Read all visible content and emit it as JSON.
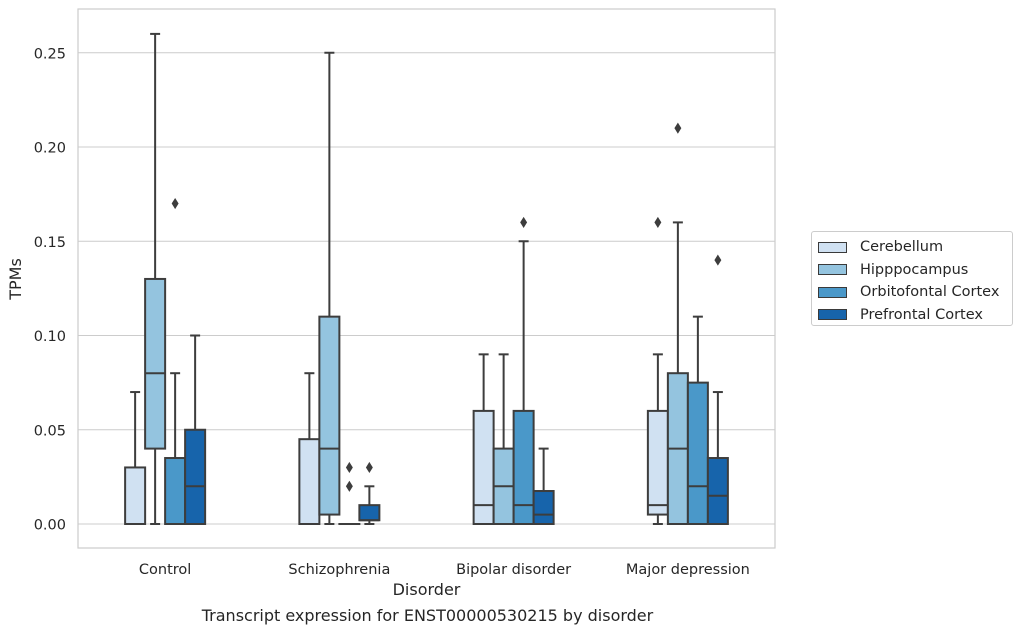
{
  "chart_data": {
    "type": "box",
    "title": "",
    "caption": "Transcript expression for ENST00000530215 by disorder",
    "xlabel": "Disorder",
    "ylabel": "TPMs",
    "ylim": [
      -0.0125,
      0.275
    ],
    "yticks": [
      0.0,
      0.05,
      0.1,
      0.15,
      0.2,
      0.25
    ],
    "ytick_labels": [
      "0.00",
      "0.05",
      "0.10",
      "0.15",
      "0.20",
      "0.25"
    ],
    "grid": "horizontal",
    "legend_position": "right",
    "categories": [
      "Control",
      "Schizophrenia",
      "Bipolar disorder",
      "Major depression"
    ],
    "series": [
      {
        "name": "Cerebellum",
        "color": "#d0e1f2",
        "boxes": [
          {
            "whislo": 0.0,
            "q1": 0.0,
            "med": 0.0,
            "q3": 0.03,
            "whishi": 0.07,
            "fliers": []
          },
          {
            "whislo": 0.0,
            "q1": 0.0,
            "med": 0.0,
            "q3": 0.045,
            "whishi": 0.08,
            "fliers": []
          },
          {
            "whislo": 0.0,
            "q1": 0.0,
            "med": 0.01,
            "q3": 0.06,
            "whishi": 0.09,
            "fliers": []
          },
          {
            "whislo": 0.0,
            "q1": 0.005,
            "med": 0.01,
            "q3": 0.06,
            "whishi": 0.09,
            "fliers": [
              0.16
            ]
          }
        ]
      },
      {
        "name": "Hipppocampus",
        "color": "#94c4df",
        "boxes": [
          {
            "whislo": 0.0,
            "q1": 0.04,
            "med": 0.08,
            "q3": 0.13,
            "whishi": 0.26,
            "fliers": []
          },
          {
            "whislo": 0.0,
            "q1": 0.005,
            "med": 0.04,
            "q3": 0.11,
            "whishi": 0.25,
            "fliers": []
          },
          {
            "whislo": 0.0,
            "q1": 0.0,
            "med": 0.02,
            "q3": 0.04,
            "whishi": 0.09,
            "fliers": []
          },
          {
            "whislo": 0.0,
            "q1": 0.0,
            "med": 0.04,
            "q3": 0.08,
            "whishi": 0.16,
            "fliers": [
              0.21
            ]
          }
        ]
      },
      {
        "name": "Orbitofontal Cortex",
        "color": "#4a98c9",
        "boxes": [
          {
            "whislo": 0.0,
            "q1": 0.0,
            "med": 0.0,
            "q3": 0.035,
            "whishi": 0.08,
            "fliers": [
              0.17
            ]
          },
          {
            "whislo": 0.0,
            "q1": 0.0,
            "med": 0.0,
            "q3": 0.0,
            "whishi": 0.0,
            "fliers": [
              0.02,
              0.03
            ]
          },
          {
            "whislo": 0.0,
            "q1": 0.0,
            "med": 0.01,
            "q3": 0.06,
            "whishi": 0.15,
            "fliers": [
              0.16
            ]
          },
          {
            "whislo": 0.0,
            "q1": 0.0,
            "med": 0.02,
            "q3": 0.075,
            "whishi": 0.11,
            "fliers": []
          }
        ]
      },
      {
        "name": "Prefrontal Cortex",
        "color": "#1764ab",
        "boxes": [
          {
            "whislo": 0.0,
            "q1": 0.0,
            "med": 0.02,
            "q3": 0.05,
            "whishi": 0.1,
            "fliers": []
          },
          {
            "whislo": 0.0,
            "q1": 0.002,
            "med": 0.002,
            "q3": 0.01,
            "whishi": 0.02,
            "fliers": [
              0.03
            ]
          },
          {
            "whislo": 0.0,
            "q1": 0.0,
            "med": 0.005,
            "q3": 0.0175,
            "whishi": 0.04,
            "fliers": []
          },
          {
            "whislo": 0.0,
            "q1": 0.0,
            "med": 0.015,
            "q3": 0.035,
            "whishi": 0.07,
            "fliers": [
              0.14
            ]
          }
        ]
      }
    ]
  }
}
